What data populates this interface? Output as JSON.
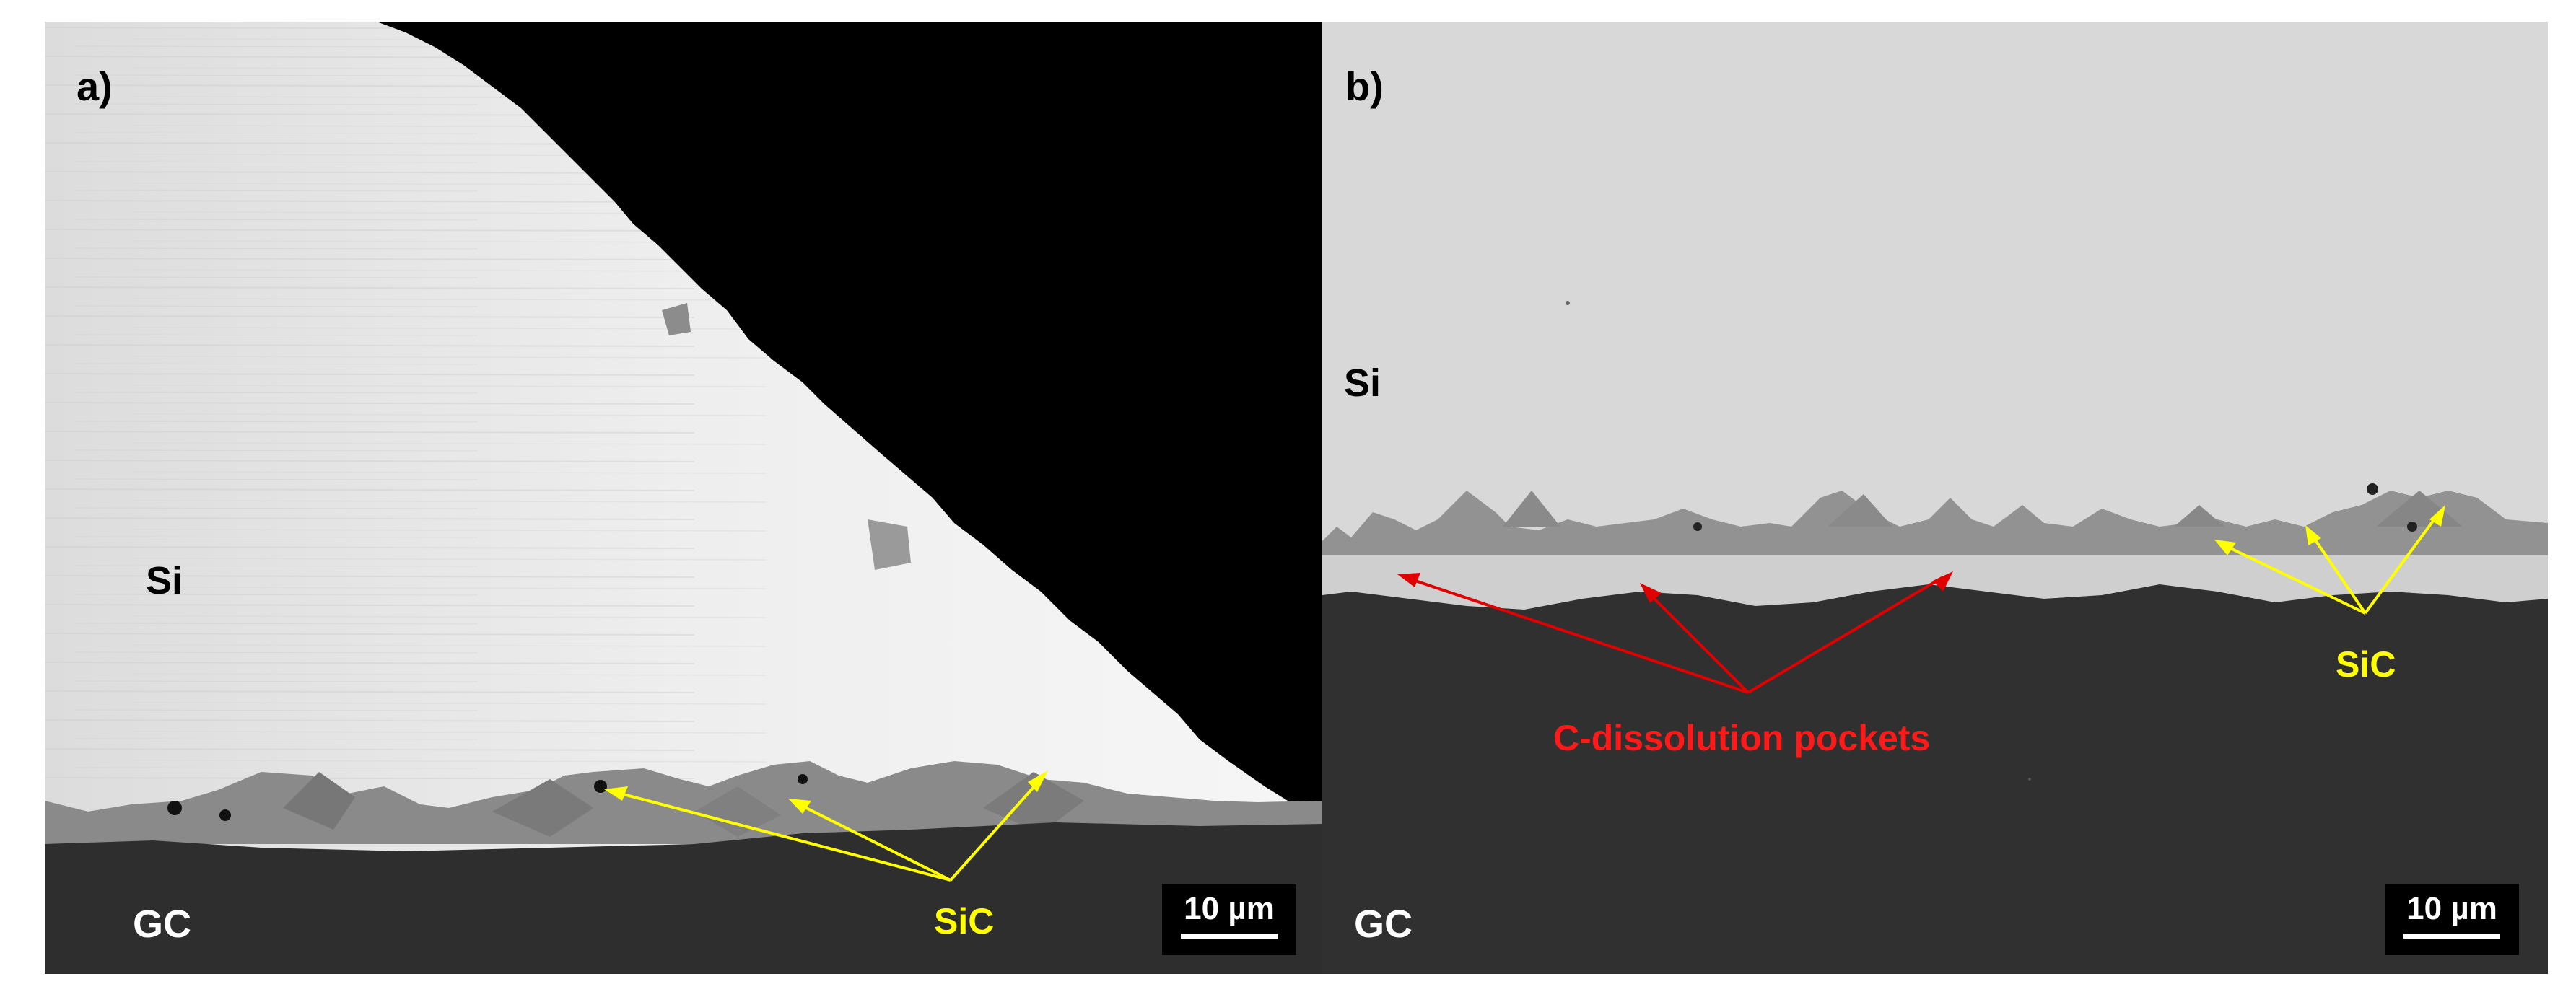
{
  "panel_a": {
    "panel_label": "a)",
    "region_top": "Si",
    "region_bottom": "GC",
    "phase_label": "SiC",
    "scale_bar": "10 µm",
    "colors": {
      "silicon": "#ececec",
      "gc_substrate": "#2e2e2e",
      "void": "#000000",
      "sic": "#8a8a8a",
      "arrow": "#ffff00"
    }
  },
  "panel_b": {
    "panel_label": "b)",
    "region_top": "Si",
    "region_bottom": "GC",
    "phase_label": "SiC",
    "dissolution_label": "C-dissolution pockets",
    "scale_bar": "10 µm",
    "colors": {
      "silicon": "#d8d8d8",
      "gc_substrate": "#303030",
      "sic": "#929292",
      "dissolution_layer": "#cfcfcf",
      "sic_arrow": "#ffff00",
      "dissolution_arrow": "#e00000"
    }
  }
}
